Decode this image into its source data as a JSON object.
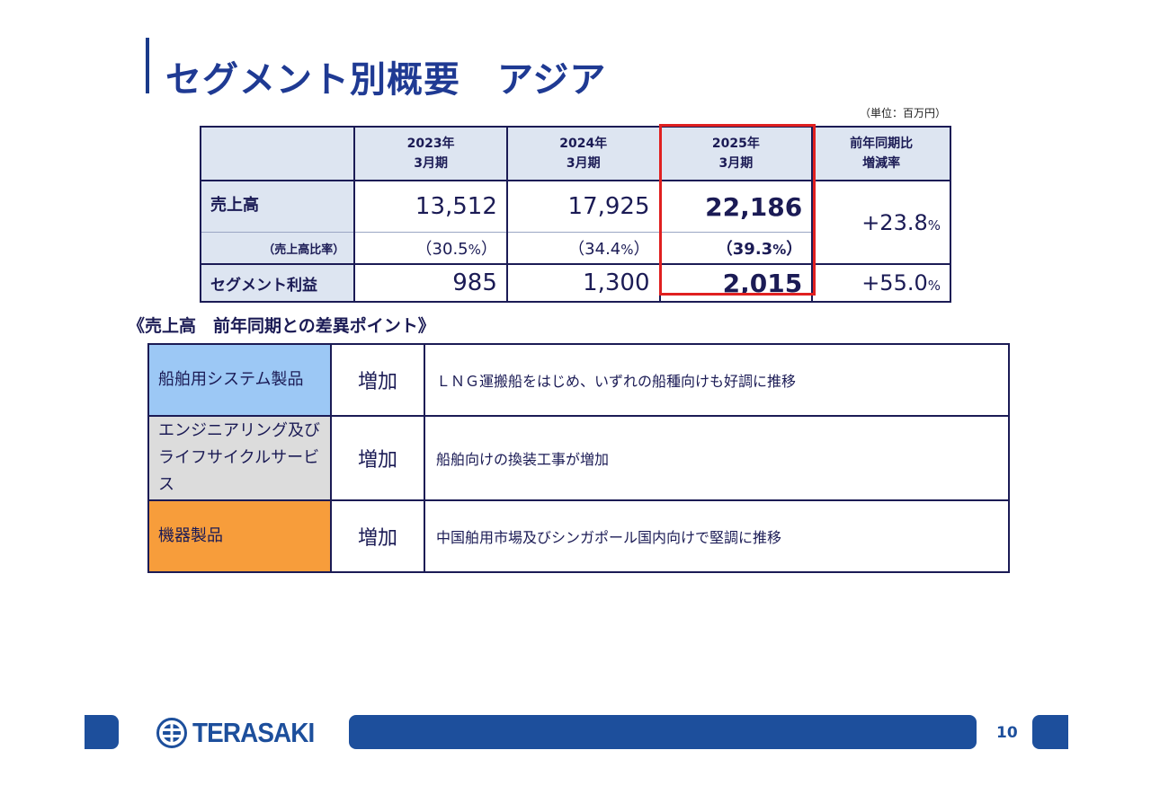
{
  "title": "セグメント別概要　アジア",
  "unit": "（単位：百万円）",
  "table": {
    "headers": [
      {
        "line1": "",
        "line2": ""
      },
      {
        "line1": "2023年",
        "line2": "3月期"
      },
      {
        "line1": "2024年",
        "line2": "3月期"
      },
      {
        "line1": "2025年",
        "line2": "3月期"
      },
      {
        "line1": "前年同期比",
        "line2": "増減率"
      }
    ],
    "sales": {
      "label": "売上高",
      "values": [
        "13,512",
        "17,925",
        "22,186"
      ],
      "change": "+23.8",
      "change_unit": "%"
    },
    "ratio": {
      "label": "（売上高比率）",
      "values": [
        "（30.5",
        "（34.4",
        "（39.3"
      ],
      "pct": "%",
      "close": "）"
    },
    "segment_profit": {
      "label": "セグメント利益",
      "values": [
        "985",
        "1,300",
        "2,015"
      ],
      "change": "+55.0",
      "change_unit": "%"
    }
  },
  "section_title": "《売上高　前年同期との差異ポイント》",
  "points": [
    {
      "category": "船舶用システム製品",
      "change": "増加",
      "description": "ＬＮＧ運搬船をはじめ、いずれの船種向けも好調に推移"
    },
    {
      "category_line1": "エンジニアリング及び",
      "category_line2": "ライフサイクルサービス",
      "change": "増加",
      "description": "船舶向けの換装工事が増加"
    },
    {
      "category": "機器製品",
      "change": "増加",
      "description": "中国舶用市場及びシンガポール国内向けで堅調に推移"
    }
  ],
  "footer": {
    "logo_text": "TERASAKI",
    "page_number": "10"
  },
  "colors": {
    "brand_blue": "#1d4f9c",
    "highlight_red": "#e02020",
    "cat_blue": "#9cc8f5",
    "cat_gray": "#dcdcdc",
    "cat_orange": "#f79d3b"
  }
}
